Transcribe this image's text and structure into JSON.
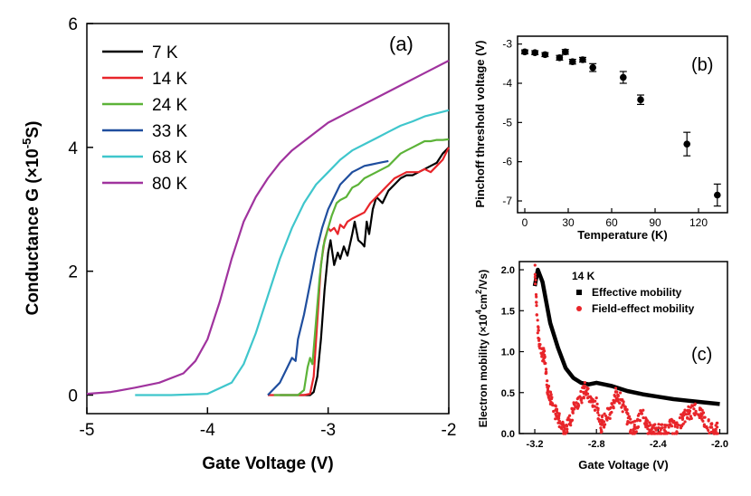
{
  "chart_data": [
    {
      "id": "a",
      "type": "line",
      "panel_label": "(a)",
      "xlabel": "Gate Voltage (V)",
      "ylabel": "Conductance G (×10",
      "ylabel_sup": "-5",
      "ylabel_tail": "S)",
      "xlim": [
        -5,
        -2
      ],
      "ylim": [
        -0.3,
        6
      ],
      "xticks": [
        -5,
        -4,
        -3,
        -2
      ],
      "yticks": [
        0,
        2,
        4,
        6
      ],
      "legend_position": "top-left",
      "series": [
        {
          "name": "7 K",
          "color": "#000000",
          "x": [
            -3.4,
            -3.15,
            -3.12,
            -3.09,
            -3.06,
            -3.03,
            -3.0,
            -2.98,
            -2.95,
            -2.92,
            -2.9,
            -2.87,
            -2.84,
            -2.8,
            -2.78,
            -2.75,
            -2.72,
            -2.7,
            -2.68,
            -2.66,
            -2.63,
            -2.6,
            -2.55,
            -2.5,
            -2.45,
            -2.4,
            -2.35,
            -2.3,
            -2.25,
            -2.2,
            -2.15,
            -2.1,
            -2.05,
            -2.0
          ],
          "y": [
            0.0,
            0.0,
            0.05,
            0.3,
            0.9,
            1.7,
            2.3,
            2.5,
            2.1,
            2.3,
            2.2,
            2.4,
            2.25,
            2.6,
            2.8,
            2.5,
            2.45,
            2.4,
            2.8,
            2.6,
            3.0,
            3.2,
            3.1,
            3.3,
            3.4,
            3.5,
            3.55,
            3.55,
            3.6,
            3.65,
            3.7,
            3.75,
            3.9,
            4.0
          ]
        },
        {
          "name": "14 K",
          "color": "#e8252a",
          "x": [
            -3.5,
            -3.2,
            -3.15,
            -3.12,
            -3.09,
            -3.06,
            -3.03,
            -3.0,
            -2.98,
            -2.95,
            -2.92,
            -2.9,
            -2.87,
            -2.84,
            -2.8,
            -2.75,
            -2.7,
            -2.65,
            -2.6,
            -2.55,
            -2.5,
            -2.45,
            -2.4,
            -2.35,
            -2.3,
            -2.25,
            -2.2,
            -2.15,
            -2.1,
            -2.05,
            -2.0
          ],
          "y": [
            0.0,
            0.0,
            0.02,
            0.3,
            1.2,
            2.1,
            2.5,
            2.7,
            2.65,
            2.7,
            2.6,
            2.75,
            2.7,
            2.8,
            2.85,
            2.9,
            2.95,
            3.1,
            3.2,
            3.3,
            3.4,
            3.5,
            3.55,
            3.6,
            3.6,
            3.6,
            3.65,
            3.6,
            3.7,
            3.8,
            4.0
          ]
        },
        {
          "name": "24 K",
          "color": "#5cb338",
          "x": [
            -3.45,
            -3.25,
            -3.2,
            -3.17,
            -3.15,
            -3.13,
            -3.1,
            -3.07,
            -3.04,
            -3.0,
            -2.97,
            -2.93,
            -2.9,
            -2.85,
            -2.8,
            -2.75,
            -2.7,
            -2.6,
            -2.5,
            -2.45,
            -2.4,
            -2.35,
            -2.3,
            -2.25,
            -2.2,
            -2.15,
            -2.1,
            -2.05,
            -2.0
          ],
          "y": [
            0.0,
            0.0,
            0.08,
            0.45,
            0.6,
            0.5,
            1.2,
            1.9,
            2.4,
            2.7,
            2.9,
            3.1,
            3.15,
            3.2,
            3.35,
            3.4,
            3.5,
            3.6,
            3.7,
            3.8,
            3.9,
            3.95,
            4.0,
            4.05,
            4.1,
            4.1,
            4.12,
            4.12,
            4.13
          ]
        },
        {
          "name": "33 K",
          "color": "#1f4e9e",
          "x": [
            -3.5,
            -3.45,
            -3.4,
            -3.35,
            -3.3,
            -3.27,
            -3.25,
            -3.2,
            -3.15,
            -3.1,
            -3.05,
            -3.0,
            -2.95,
            -2.9,
            -2.85,
            -2.8,
            -2.75,
            -2.7,
            -2.65,
            -2.6,
            -2.55,
            -2.5
          ],
          "y": [
            0.0,
            0.1,
            0.2,
            0.4,
            0.6,
            0.55,
            0.9,
            1.3,
            1.8,
            2.3,
            2.7,
            3.0,
            3.2,
            3.4,
            3.5,
            3.6,
            3.65,
            3.7,
            3.72,
            3.74,
            3.76,
            3.78
          ]
        },
        {
          "name": "68 K",
          "color": "#3fc6cc",
          "x": [
            -4.6,
            -4.3,
            -4.0,
            -3.8,
            -3.7,
            -3.6,
            -3.5,
            -3.4,
            -3.3,
            -3.2,
            -3.1,
            -3.0,
            -2.9,
            -2.8,
            -2.7,
            -2.6,
            -2.5,
            -2.4,
            -2.3,
            -2.2,
            -2.1,
            -2.0
          ],
          "y": [
            0.0,
            0.0,
            0.02,
            0.2,
            0.5,
            1.0,
            1.6,
            2.2,
            2.7,
            3.1,
            3.4,
            3.6,
            3.8,
            3.95,
            4.05,
            4.15,
            4.25,
            4.35,
            4.42,
            4.5,
            4.55,
            4.6
          ]
        },
        {
          "name": "80 K",
          "color": "#a0339e",
          "x": [
            -5.0,
            -4.8,
            -4.6,
            -4.4,
            -4.2,
            -4.1,
            -4.0,
            -3.9,
            -3.8,
            -3.7,
            -3.6,
            -3.5,
            -3.4,
            -3.3,
            -3.2,
            -3.1,
            -3.0,
            -2.8,
            -2.6,
            -2.4,
            -2.2,
            -2.0
          ],
          "y": [
            0.02,
            0.05,
            0.12,
            0.2,
            0.35,
            0.55,
            0.9,
            1.5,
            2.2,
            2.8,
            3.2,
            3.5,
            3.75,
            3.95,
            4.1,
            4.25,
            4.4,
            4.6,
            4.8,
            5.0,
            5.2,
            5.4
          ]
        }
      ]
    },
    {
      "id": "b",
      "type": "scatter",
      "panel_label": "(b)",
      "xlabel": "Temperature (K)",
      "ylabel": "Pinchoff threshold voltage (V)",
      "xlim": [
        -5,
        140
      ],
      "ylim": [
        -7.3,
        -2.8
      ],
      "xticks": [
        0,
        30,
        60,
        90,
        120
      ],
      "yticks": [
        -3,
        -4,
        -5,
        -6,
        -7
      ],
      "series": [
        {
          "name": "threshold",
          "x": [
            0,
            7,
            14,
            24,
            28,
            33,
            40,
            47,
            68,
            80,
            112,
            133
          ],
          "y": [
            -3.2,
            -3.22,
            -3.27,
            -3.35,
            -3.2,
            -3.45,
            -3.4,
            -3.6,
            -3.85,
            -4.42,
            -5.55,
            -6.85
          ],
          "err": [
            0.05,
            0.05,
            0.05,
            0.06,
            0.06,
            0.06,
            0.06,
            0.1,
            0.15,
            0.12,
            0.3,
            0.28
          ]
        }
      ]
    },
    {
      "id": "c",
      "type": "scatter",
      "panel_label": "(c)",
      "annotation": "14 K",
      "xlabel": "Gate Voltage (V)",
      "ylabel": "Electron mobility (×10",
      "ylabel_sup1": "4",
      "ylabel_mid": "cm",
      "ylabel_sup2": "2",
      "ylabel_tail": "/Vs)",
      "xlim": [
        -3.3,
        -1.95
      ],
      "ylim": [
        0,
        2.1
      ],
      "xticks": [
        -3.2,
        -2.8,
        -2.4,
        -2.0
      ],
      "xtick_labels": [
        "-3.2",
        "-2.8",
        "-2.4",
        "-2.0"
      ],
      "yticks": [
        0.0,
        0.5,
        1.0,
        1.5,
        2.0
      ],
      "ytick_labels": [
        "0.0",
        "0.5",
        "1.0",
        "1.5",
        "2.0"
      ],
      "series": [
        {
          "name": "Effective mobility",
          "color": "#000000",
          "x": [
            -3.2,
            -3.18,
            -3.15,
            -3.12,
            -3.1,
            -3.05,
            -3.0,
            -2.95,
            -2.9,
            -2.85,
            -2.8,
            -2.75,
            -2.7,
            -2.6,
            -2.5,
            -2.4,
            -2.3,
            -2.2,
            -2.1,
            -2.0
          ],
          "y": [
            1.8,
            2.0,
            1.85,
            1.55,
            1.35,
            1.05,
            0.8,
            0.68,
            0.62,
            0.6,
            0.62,
            0.6,
            0.58,
            0.52,
            0.48,
            0.45,
            0.42,
            0.4,
            0.38,
            0.36
          ]
        },
        {
          "name": "Field-effect mobility",
          "color": "#e8252a",
          "x": [
            -3.2,
            -3.18,
            -3.16,
            -3.14,
            -3.12,
            -3.1,
            -3.08,
            -3.05,
            -3.02,
            -3.0,
            -2.97,
            -2.94,
            -2.9,
            -2.87,
            -2.84,
            -2.8,
            -2.77,
            -2.74,
            -2.7,
            -2.67,
            -2.64,
            -2.6,
            -2.57,
            -2.54,
            -2.5,
            -2.47,
            -2.44,
            -2.4,
            -2.36,
            -2.32,
            -2.28,
            -2.24,
            -2.2,
            -2.16,
            -2.12,
            -2.08,
            -2.04
          ],
          "y": [
            2.05,
            1.25,
            1.0,
            0.95,
            0.6,
            0.45,
            0.3,
            0.2,
            0.1,
            0.05,
            0.15,
            0.35,
            0.45,
            0.55,
            0.4,
            0.35,
            0.1,
            0.2,
            0.3,
            0.5,
            0.4,
            0.2,
            0.05,
            0.1,
            0.25,
            0.1,
            0.0,
            0.05,
            0.02,
            0.1,
            0.05,
            0.2,
            0.25,
            0.3,
            0.25,
            0.1,
            0.05
          ]
        }
      ]
    }
  ]
}
